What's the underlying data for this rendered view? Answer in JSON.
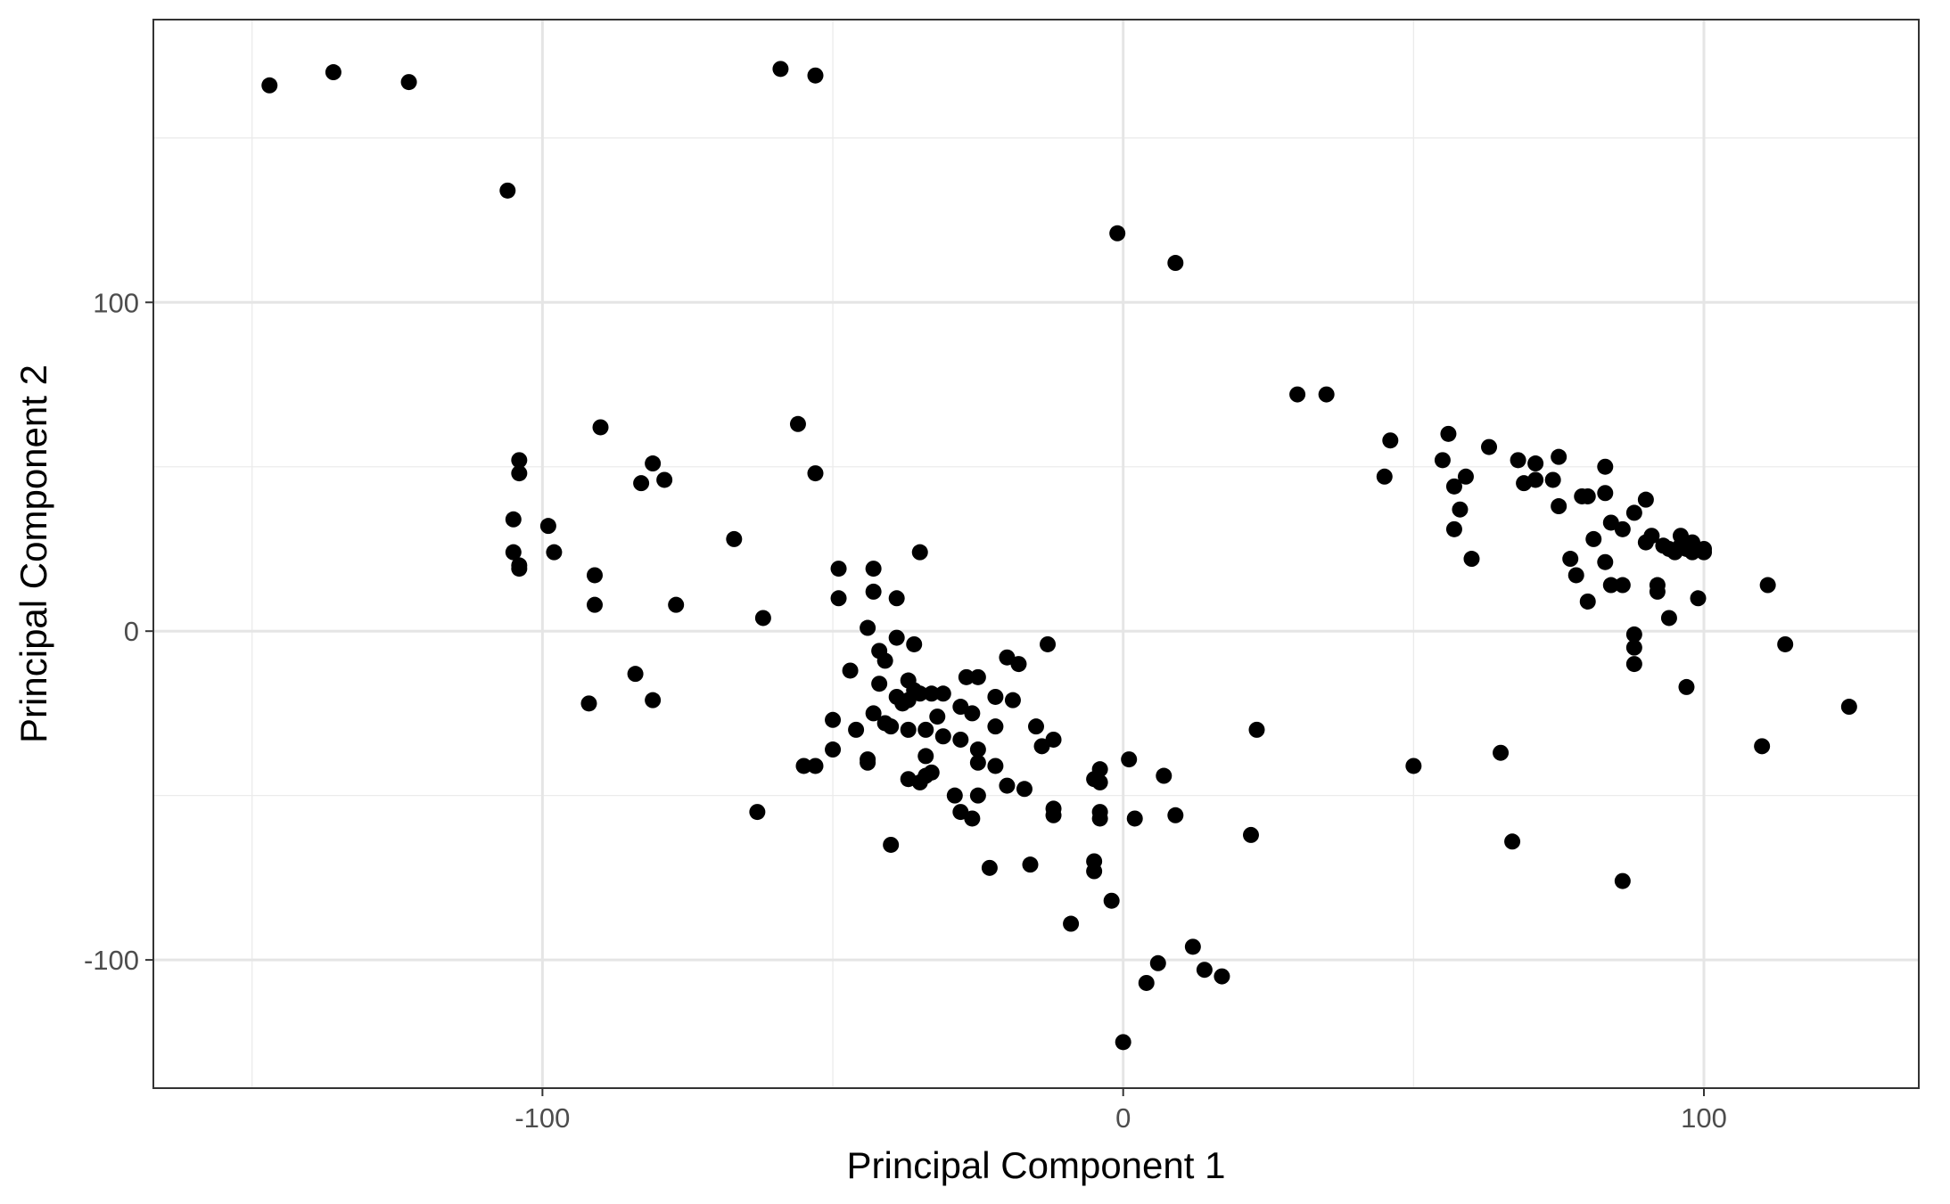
{
  "chart_data": {
    "type": "scatter",
    "xlabel": "Principal Component 1",
    "ylabel": "Principal Component 2",
    "xlim": [
      -167,
      137
    ],
    "ylim": [
      -139,
      186
    ],
    "x_ticks": [
      -100,
      0,
      100
    ],
    "y_ticks": [
      -100,
      0,
      100
    ],
    "x_tick_labels": [
      "-100",
      "0",
      "100"
    ],
    "y_tick_labels": [
      "-100",
      "0",
      "100"
    ],
    "grid": true,
    "point_color": "#000000",
    "points": [
      [
        -147,
        166
      ],
      [
        -136,
        170
      ],
      [
        -123,
        167
      ],
      [
        -59,
        171
      ],
      [
        -53,
        169
      ],
      [
        -106,
        134
      ],
      [
        -1,
        121
      ],
      [
        9,
        112
      ],
      [
        -104,
        52
      ],
      [
        -104,
        48
      ],
      [
        -105,
        34
      ],
      [
        -99,
        32
      ],
      [
        -105,
        24
      ],
      [
        -98,
        24
      ],
      [
        -104,
        20
      ],
      [
        -104,
        19
      ],
      [
        -90,
        62
      ],
      [
        -81,
        51
      ],
      [
        -83,
        45
      ],
      [
        -79,
        46
      ],
      [
        -56,
        63
      ],
      [
        -53,
        48
      ],
      [
        -67,
        28
      ],
      [
        -91,
        17
      ],
      [
        -91,
        8
      ],
      [
        -77,
        8
      ],
      [
        -62,
        4
      ],
      [
        -92,
        -22
      ],
      [
        -84,
        -13
      ],
      [
        -81,
        -21
      ],
      [
        -63,
        -55
      ],
      [
        -35,
        24
      ],
      [
        -49,
        19
      ],
      [
        -49,
        10
      ],
      [
        -43,
        19
      ],
      [
        -43,
        12
      ],
      [
        -39,
        10
      ],
      [
        -44,
        1
      ],
      [
        -39,
        -2
      ],
      [
        -36,
        -4
      ],
      [
        -42,
        -6
      ],
      [
        -41,
        -9
      ],
      [
        -47,
        -12
      ],
      [
        -42,
        -16
      ],
      [
        -37,
        -15
      ],
      [
        -36,
        -18
      ],
      [
        -35,
        -19
      ],
      [
        -33,
        -19
      ],
      [
        -31,
        -19
      ],
      [
        -39,
        -20
      ],
      [
        -38,
        -22
      ],
      [
        -37,
        -21
      ],
      [
        -27,
        -14
      ],
      [
        -25,
        -14
      ],
      [
        -20,
        -8
      ],
      [
        -18,
        -10
      ],
      [
        -13,
        -4
      ],
      [
        -22,
        -20
      ],
      [
        -19,
        -21
      ],
      [
        -28,
        -23
      ],
      [
        -26,
        -25
      ],
      [
        -32,
        -26
      ],
      [
        -50,
        -27
      ],
      [
        -46,
        -30
      ],
      [
        -43,
        -25
      ],
      [
        -41,
        -28
      ],
      [
        -40,
        -29
      ],
      [
        -37,
        -30
      ],
      [
        -34,
        -30
      ],
      [
        -31,
        -32
      ],
      [
        -28,
        -33
      ],
      [
        -22,
        -29
      ],
      [
        -15,
        -29
      ],
      [
        -12,
        -33
      ],
      [
        -14,
        -35
      ],
      [
        -25,
        -36
      ],
      [
        -34,
        -38
      ],
      [
        -33,
        -43
      ],
      [
        -34,
        -44
      ],
      [
        -37,
        -45
      ],
      [
        -35,
        -46
      ],
      [
        -50,
        -36
      ],
      [
        -44,
        -39
      ],
      [
        -44,
        -40
      ],
      [
        -53,
        -41
      ],
      [
        -55,
        -41
      ],
      [
        -25,
        -40
      ],
      [
        -22,
        -41
      ],
      [
        -20,
        -47
      ],
      [
        -17,
        -48
      ],
      [
        -29,
        -50
      ],
      [
        -25,
        -50
      ],
      [
        -28,
        -55
      ],
      [
        -26,
        -57
      ],
      [
        -12,
        -54
      ],
      [
        -12,
        -56
      ],
      [
        -5,
        -45
      ],
      [
        -4,
        -42
      ],
      [
        -4,
        -46
      ],
      [
        -4,
        -55
      ],
      [
        -4,
        -57
      ],
      [
        -40,
        -65
      ],
      [
        -23,
        -72
      ],
      [
        -16,
        -71
      ],
      [
        -5,
        -70
      ],
      [
        -5,
        -73
      ],
      [
        -2,
        -82
      ],
      [
        -9,
        -89
      ],
      [
        1,
        -39
      ],
      [
        7,
        -44
      ],
      [
        2,
        -57
      ],
      [
        9,
        -56
      ],
      [
        23,
        -30
      ],
      [
        22,
        -62
      ],
      [
        12,
        -96
      ],
      [
        6,
        -101
      ],
      [
        4,
        -107
      ],
      [
        14,
        -103
      ],
      [
        17,
        -105
      ],
      [
        0,
        -125
      ],
      [
        30,
        72
      ],
      [
        35,
        72
      ],
      [
        46,
        58
      ],
      [
        45,
        47
      ],
      [
        55,
        52
      ],
      [
        56,
        60
      ],
      [
        57,
        44
      ],
      [
        58,
        37
      ],
      [
        59,
        47
      ],
      [
        57,
        31
      ],
      [
        60,
        22
      ],
      [
        63,
        56
      ],
      [
        68,
        52
      ],
      [
        69,
        45
      ],
      [
        71,
        51
      ],
      [
        71,
        46
      ],
      [
        74,
        46
      ],
      [
        75,
        38
      ],
      [
        75,
        53
      ],
      [
        77,
        22
      ],
      [
        78,
        17
      ],
      [
        79,
        41
      ],
      [
        80,
        41
      ],
      [
        80,
        9
      ],
      [
        81,
        28
      ],
      [
        83,
        50
      ],
      [
        83,
        42
      ],
      [
        84,
        33
      ],
      [
        83,
        21
      ],
      [
        84,
        14
      ],
      [
        86,
        31
      ],
      [
        86,
        14
      ],
      [
        88,
        36
      ],
      [
        88,
        -1
      ],
      [
        88,
        -5
      ],
      [
        88,
        -10
      ],
      [
        90,
        27
      ],
      [
        90,
        40
      ],
      [
        91,
        29
      ],
      [
        92,
        14
      ],
      [
        92,
        12
      ],
      [
        93,
        26
      ],
      [
        94,
        25
      ],
      [
        94,
        4
      ],
      [
        95,
        24
      ],
      [
        96,
        29
      ],
      [
        96,
        26
      ],
      [
        97,
        25
      ],
      [
        98,
        27
      ],
      [
        98,
        24
      ],
      [
        99,
        10
      ],
      [
        100,
        25
      ],
      [
        100,
        24
      ],
      [
        97,
        -17
      ],
      [
        110,
        -35
      ],
      [
        111,
        14
      ],
      [
        114,
        -4
      ],
      [
        125,
        -23
      ],
      [
        50,
        -41
      ],
      [
        65,
        -37
      ],
      [
        67,
        -64
      ],
      [
        86,
        -76
      ]
    ]
  }
}
